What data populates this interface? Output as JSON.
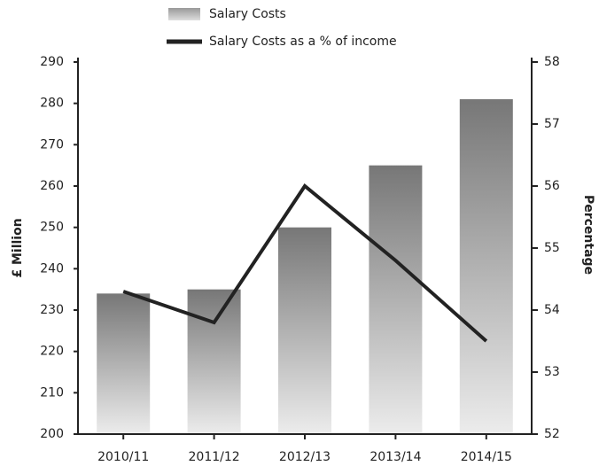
{
  "chart_data": {
    "type": "bar",
    "categories": [
      "2010/11",
      "2011/12",
      "2012/13",
      "2013/14",
      "2014/15"
    ],
    "series": [
      {
        "name": "Salary Costs",
        "color": "#888888",
        "values": [
          234,
          235,
          250,
          265,
          281
        ]
      },
      {
        "name": "Salary Costs as a % of income",
        "type": "line",
        "axis": "y2",
        "color": "#222222",
        "values": [
          54.3,
          53.8,
          56.0,
          54.8,
          53.5
        ]
      }
    ],
    "ylabel": "£ Million",
    "y2label": "Percentage",
    "ylim": [
      200,
      290
    ],
    "yticks": [
      200,
      210,
      220,
      230,
      240,
      250,
      260,
      270,
      280,
      290
    ],
    "y2lim": [
      52,
      58
    ],
    "y2ticks": [
      52,
      53,
      54,
      55,
      56,
      57,
      58
    ],
    "grid": false
  }
}
